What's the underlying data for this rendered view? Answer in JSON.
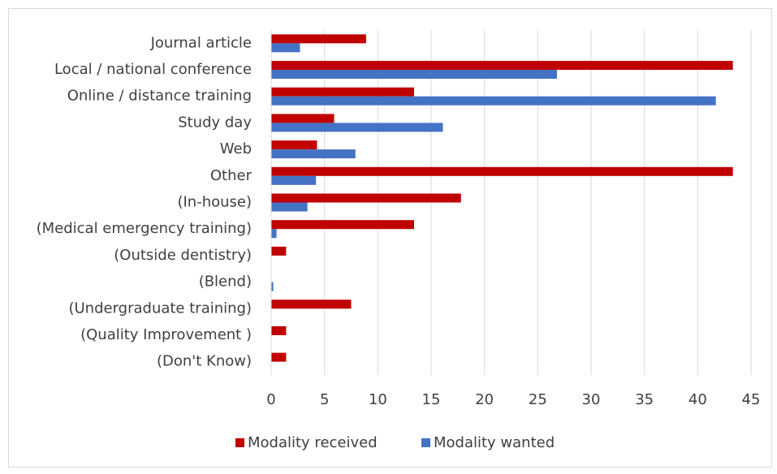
{
  "chart_data": {
    "type": "hbar",
    "categories": [
      "Journal article",
      "Local / national conference",
      "Online / distance training",
      "Study day",
      "Web",
      "Other",
      "(In-house)",
      "(Medical emergency training)",
      "(Outside dentistry)",
      "(Blend)",
      "(Undergraduate training)",
      "(Quality Improvement )",
      "(Don't Know)"
    ],
    "series": [
      {
        "name": "Modality received",
        "color": "#c00000",
        "values": [
          8.9,
          43.3,
          13.4,
          5.9,
          4.3,
          43.3,
          17.8,
          13.4,
          1.4,
          0,
          7.5,
          1.4,
          1.4
        ]
      },
      {
        "name": "Modality wanted",
        "color": "#4472c4",
        "values": [
          2.7,
          26.8,
          41.7,
          16.1,
          7.9,
          4.2,
          3.4,
          0.5,
          0,
          0.2,
          0,
          0,
          0
        ]
      }
    ],
    "xlim": [
      0,
      45
    ],
    "xticks": [
      0,
      5,
      10,
      15,
      20,
      25,
      30,
      35,
      40,
      45
    ],
    "grid": true,
    "legend": "bottom"
  }
}
